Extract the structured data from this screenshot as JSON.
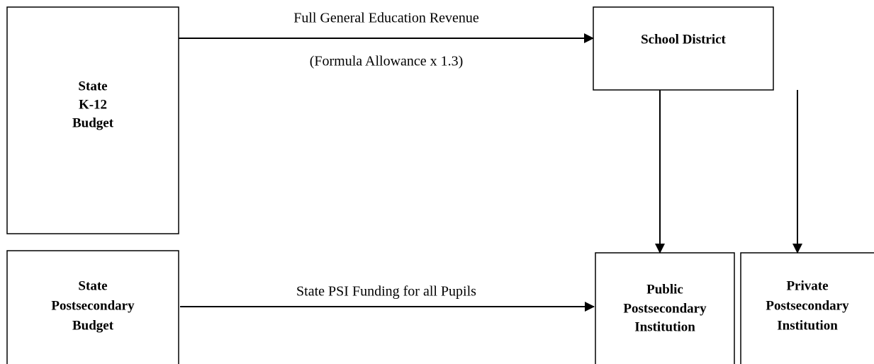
{
  "nodes": [
    {
      "lines": [
        "State",
        "K-12",
        "Budget"
      ]
    },
    {
      "lines": [
        "State",
        "Postsecondary",
        "Budget"
      ]
    },
    {
      "lines": [
        "School District"
      ]
    },
    {
      "lines": [
        "Public",
        "Postsecondary",
        "Institution"
      ]
    },
    {
      "lines": [
        "Private",
        "Postsecondary",
        "Institution"
      ]
    }
  ],
  "edges": [
    {
      "labels": [
        "Full General Education Revenue",
        "(Formula Allowance x 1.3)"
      ]
    },
    {
      "labels": [
        "State PSI Funding for all Pupils"
      ]
    }
  ]
}
